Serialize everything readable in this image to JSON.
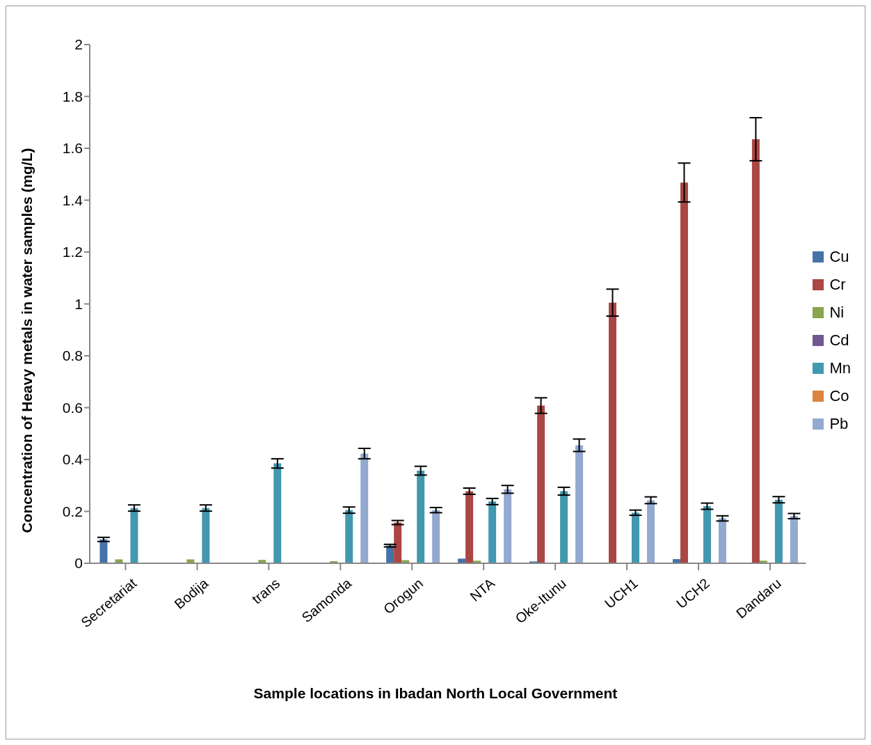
{
  "chart_data": {
    "type": "bar",
    "xlabel": "Sample locations in Ibadan North Local Government",
    "ylabel": "Concentration of Heavy metals in water samples (mg/L)",
    "categories": [
      "Secretariat",
      "Bodija",
      "trans",
      "Samonda",
      "Orogun",
      "NTA",
      "Oke-Itunu",
      "UCH1",
      "UCH2",
      "Dandaru"
    ],
    "series": [
      {
        "name": "Cu",
        "color": "#4572a7",
        "values": [
          0.092,
          0,
          0,
          0,
          0.068,
          0.018,
          0.007,
          0,
          0.016,
          0
        ],
        "errors": [
          0.008,
          null,
          null,
          null,
          0.005,
          null,
          null,
          null,
          null,
          null
        ]
      },
      {
        "name": "Cr",
        "color": "#aa4643",
        "values": [
          0,
          0,
          0,
          0,
          0.157,
          0.278,
          0.608,
          1.005,
          1.468,
          1.635
        ],
        "errors": [
          null,
          null,
          null,
          null,
          0.008,
          0.012,
          0.03,
          0.052,
          0.075,
          0.083
        ]
      },
      {
        "name": "Ni",
        "color": "#89a54e",
        "values": [
          0.015,
          0.015,
          0.013,
          0.008,
          0.012,
          0.01,
          null,
          0.002,
          null,
          0.01
        ]
      },
      {
        "name": "Cd",
        "color": "#71588f",
        "values": [
          0,
          0,
          0,
          0,
          0,
          0,
          0,
          0,
          0,
          0
        ]
      },
      {
        "name": "Mn",
        "color": "#4198af",
        "values": [
          0.213,
          0.213,
          0.385,
          0.205,
          0.357,
          0.238,
          0.278,
          0.195,
          0.22,
          0.245
        ],
        "errors": [
          0.012,
          0.012,
          0.018,
          0.012,
          0.017,
          0.012,
          0.015,
          0.01,
          0.012,
          0.012
        ]
      },
      {
        "name": "Co",
        "color": "#db843d",
        "values": [
          0,
          0,
          0,
          0,
          0,
          0,
          0,
          0,
          0,
          0
        ]
      },
      {
        "name": "Pb",
        "color": "#93a9cf",
        "values": [
          0,
          0,
          0,
          0.423,
          0.205,
          0.285,
          0.455,
          0.243,
          0.173,
          0.182
        ],
        "errors": [
          null,
          null,
          null,
          0.02,
          0.01,
          0.015,
          0.024,
          0.013,
          0.01,
          0.01
        ]
      }
    ],
    "ylim": [
      0,
      2
    ],
    "yticks": [
      0,
      0.2,
      0.4,
      0.6,
      0.8,
      1,
      1.2,
      1.4,
      1.6,
      1.8,
      2
    ],
    "grid": false,
    "legend": "right"
  }
}
